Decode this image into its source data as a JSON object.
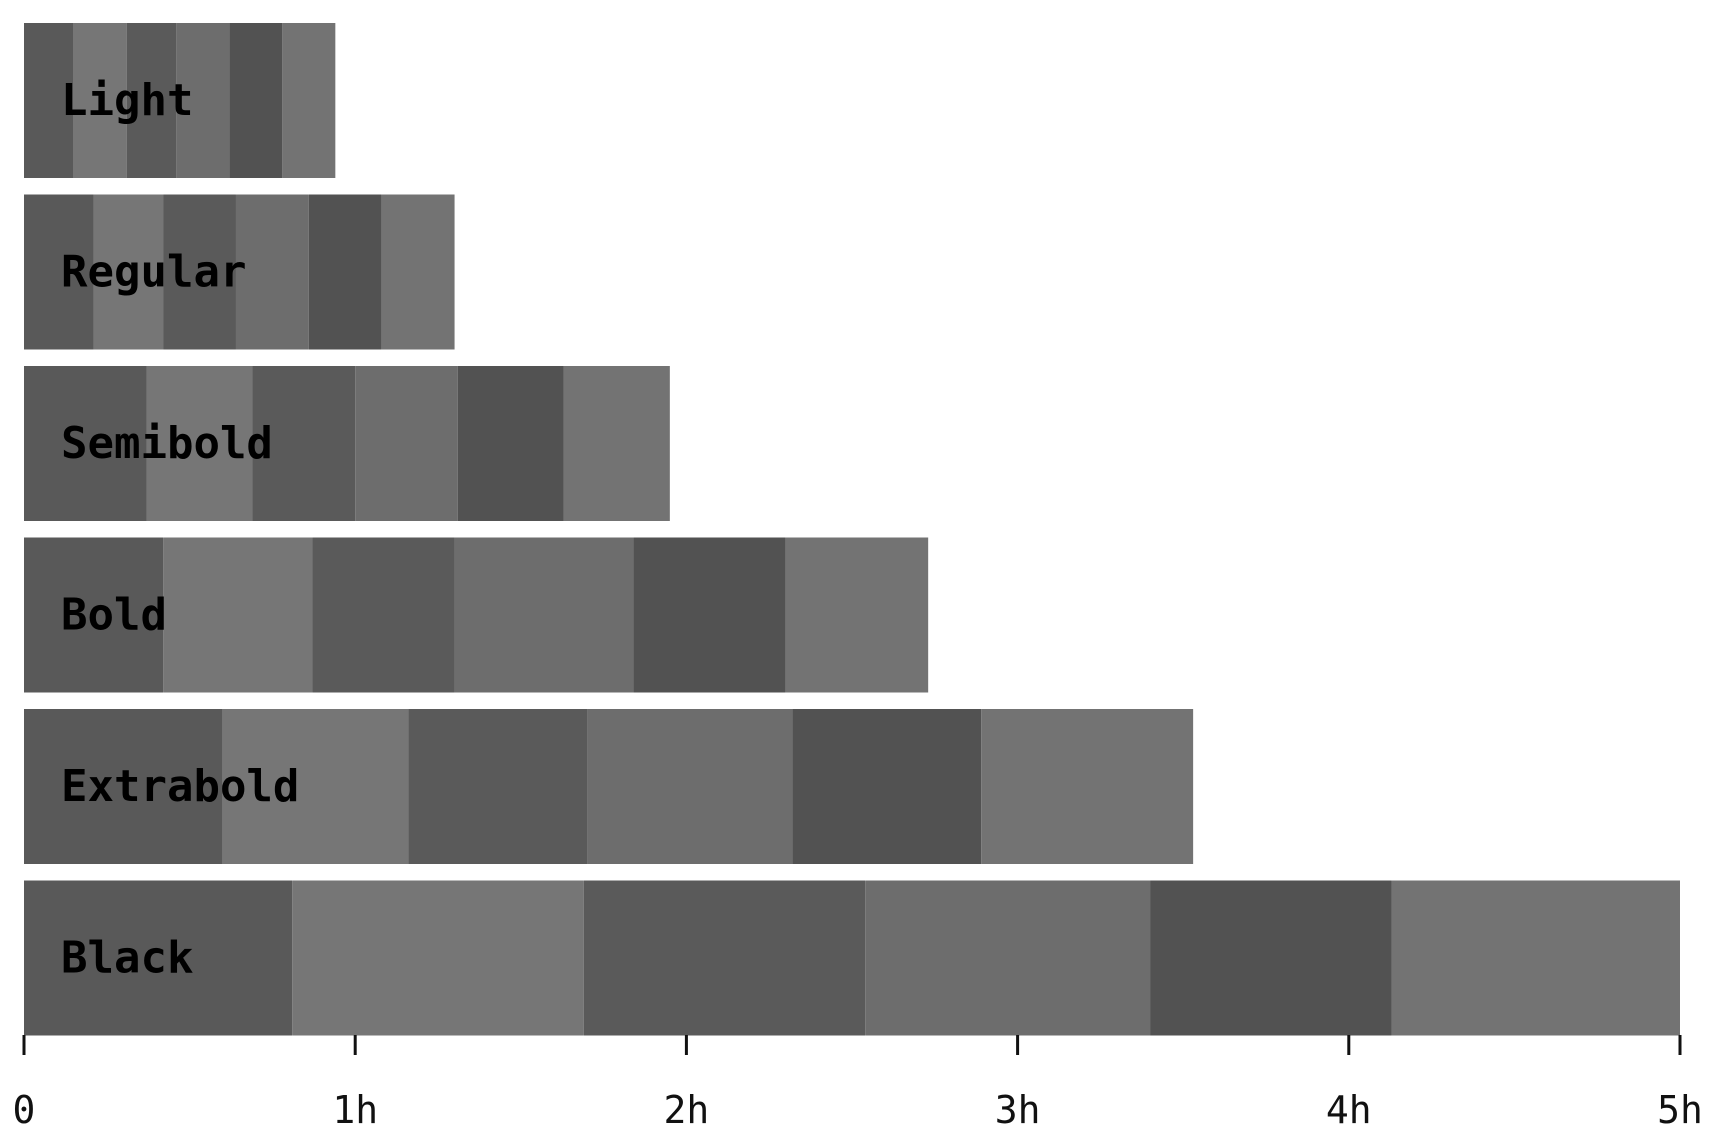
{
  "chart_data": {
    "type": "bar",
    "orientation": "horizontal",
    "stacked": true,
    "title": "",
    "xlabel": "",
    "ylabel": "",
    "xlim": [
      0,
      5
    ],
    "x_ticks": [
      {
        "value": 0,
        "label": "0"
      },
      {
        "value": 1,
        "label": "1h"
      },
      {
        "value": 2,
        "label": "2h"
      },
      {
        "value": 3,
        "label": "3h"
      },
      {
        "value": 4,
        "label": "4h"
      },
      {
        "value": 5,
        "label": "5h"
      }
    ],
    "grid": false,
    "legend": "none",
    "segment_colors": [
      "#595959",
      "#767676",
      "#5a5a5a",
      "#6d6d6d",
      "#525252",
      "#737373"
    ],
    "categories": [
      "Light",
      "Regular",
      "Semibold",
      "Bold",
      "Extrabold",
      "Black"
    ],
    "segments": [
      [
        0.15,
        0.16,
        0.15,
        0.16,
        0.16,
        0.16
      ],
      [
        0.21,
        0.21,
        0.22,
        0.22,
        0.22,
        0.22
      ],
      [
        0.37,
        0.32,
        0.31,
        0.31,
        0.32,
        0.32
      ],
      [
        0.42,
        0.45,
        0.43,
        0.54,
        0.46,
        0.43
      ],
      [
        0.6,
        0.56,
        0.54,
        0.62,
        0.57,
        0.64
      ],
      [
        0.81,
        0.88,
        0.85,
        0.86,
        0.73,
        0.87
      ]
    ]
  }
}
